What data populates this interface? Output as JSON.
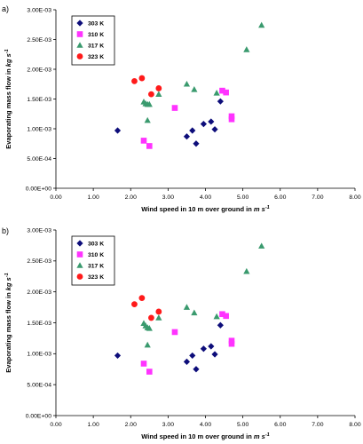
{
  "chart_data": [
    {
      "type": "scatter",
      "panel_label": "a)",
      "xlabel": "Wind speed in 10 m over ground in m s⁻¹",
      "xlabel_main": "Wind speed in 10 m over ground in ",
      "xlabel_unit": "m s",
      "xlabel_sup": "-1",
      "ylabel_main": "Evaporating mass flow in ",
      "ylabel_unit": "kg s",
      "ylabel_sup": "-1",
      "xlim": [
        0,
        8
      ],
      "ylim": [
        0,
        0.003
      ],
      "x_ticks": [
        "0.00",
        "1.00",
        "2.00",
        "3.00",
        "4.00",
        "5.00",
        "6.00",
        "7.00",
        "8.00"
      ],
      "y_ticks": [
        "0.00E+00",
        "5.00E-04",
        "1.00E-03",
        "1.50E-03",
        "2.00E-03",
        "2.50E-03",
        "3.00E-03"
      ],
      "legend_position": "top-left",
      "grid": false,
      "series": [
        {
          "name": "303 K",
          "marker": "diamond",
          "color": "#0d0d7a",
          "x": [
            1.65,
            3.5,
            3.65,
            3.75,
            3.95,
            4.15,
            4.25,
            4.4
          ],
          "y": [
            0.00097,
            0.00087,
            0.00097,
            0.00075,
            0.00108,
            0.00112,
            0.00099,
            0.00146
          ]
        },
        {
          "name": "310 K",
          "marker": "square",
          "color": "#ff33ff",
          "x": [
            2.35,
            2.5,
            3.18,
            4.45,
            4.55,
            4.7,
            4.7
          ],
          "y": [
            0.0008,
            0.00071,
            0.00135,
            0.00164,
            0.00161,
            0.00121,
            0.00116
          ]
        },
        {
          "name": "317 K",
          "marker": "triangle",
          "color": "#3a9a6e",
          "x": [
            2.35,
            2.4,
            2.45,
            2.45,
            2.5,
            2.75,
            3.5,
            3.7,
            4.3,
            5.1,
            5.5
          ],
          "y": [
            0.00145,
            0.00142,
            0.00141,
            0.00114,
            0.00141,
            0.00158,
            0.00175,
            0.00166,
            0.0016,
            0.00233,
            0.00274
          ]
        },
        {
          "name": "323 K",
          "marker": "circle",
          "color": "#ff1a1a",
          "x": [
            2.1,
            2.3,
            2.55,
            2.75
          ],
          "y": [
            0.0018,
            0.00185,
            0.00158,
            0.00168
          ]
        }
      ]
    },
    {
      "type": "scatter",
      "panel_label": "b)",
      "xlabel": "Wind speed in 10 m over ground in m s⁻¹",
      "xlabel_main": "Wind speed in 10 m over ground in ",
      "xlabel_unit": "m s",
      "xlabel_sup": "-1",
      "ylabel_main": "Evaporating mass flow in ",
      "ylabel_unit": "kg s",
      "ylabel_sup": "-1",
      "xlim": [
        0,
        8
      ],
      "ylim": [
        0,
        0.003
      ],
      "x_ticks": [
        "0.00",
        "1.00",
        "2.00",
        "3.00",
        "4.00",
        "5.00",
        "6.00",
        "7.00",
        "8.00"
      ],
      "y_ticks": [
        "0.00E+00",
        "5.00E-04",
        "1.00E-03",
        "1.50E-03",
        "2.00E-03",
        "2.50E-03",
        "3.00E-03"
      ],
      "legend_position": "top-left",
      "grid": false,
      "series": [
        {
          "name": "303 K",
          "marker": "diamond",
          "color": "#0d0d7a",
          "x": [
            1.65,
            3.5,
            3.65,
            3.75,
            3.95,
            4.15,
            4.25,
            4.4
          ],
          "y": [
            0.00097,
            0.00087,
            0.00097,
            0.00075,
            0.00108,
            0.00112,
            0.00099,
            0.00146
          ]
        },
        {
          "name": "310 K",
          "marker": "square",
          "color": "#ff33ff",
          "x": [
            2.35,
            2.5,
            3.18,
            4.45,
            4.55,
            4.7,
            4.7
          ],
          "y": [
            0.00084,
            0.00071,
            0.00135,
            0.00164,
            0.00161,
            0.00121,
            0.00116
          ]
        },
        {
          "name": "317 K",
          "marker": "triangle",
          "color": "#3a9a6e",
          "x": [
            2.35,
            2.4,
            2.45,
            2.45,
            2.5,
            2.75,
            3.5,
            3.7,
            4.3,
            5.1,
            5.5
          ],
          "y": [
            0.00149,
            0.00145,
            0.00142,
            0.00114,
            0.00141,
            0.00158,
            0.00175,
            0.00166,
            0.0016,
            0.00233,
            0.00274
          ]
        },
        {
          "name": "323 K",
          "marker": "circle",
          "color": "#ff1a1a",
          "x": [
            2.1,
            2.3,
            2.55,
            2.75
          ],
          "y": [
            0.0018,
            0.0019,
            0.00158,
            0.00168
          ]
        }
      ]
    }
  ]
}
